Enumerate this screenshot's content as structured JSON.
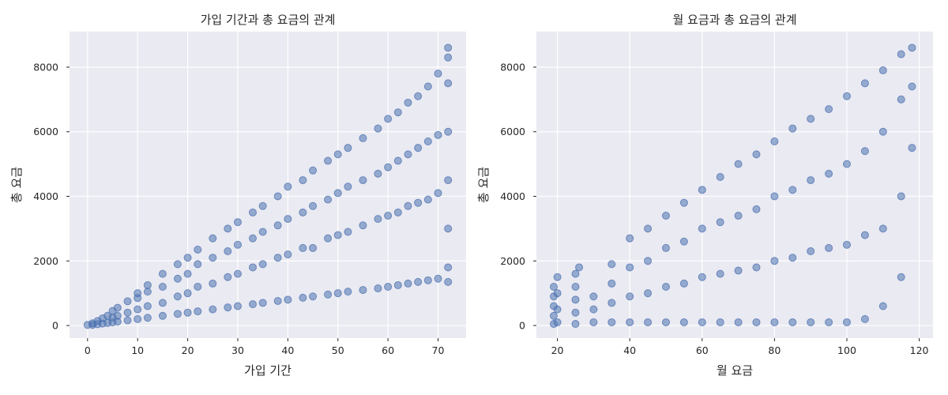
{
  "chart_data": [
    {
      "type": "scatter",
      "title": "가입 기간과 총 요금의 관계",
      "xlabel": "가입 기간",
      "ylabel": "총 요금",
      "xlim": [
        -3.6,
        75.6
      ],
      "ylim": [
        -390,
        9100
      ],
      "xticks": [
        0,
        10,
        20,
        30,
        40,
        50,
        60,
        70
      ],
      "yticks": [
        0,
        2000,
        4000,
        6000,
        8000
      ],
      "grid": true,
      "legend": "none",
      "point_color": "#4c72b0",
      "points": [
        [
          0,
          20
        ],
        [
          1,
          20
        ],
        [
          1,
          70
        ],
        [
          2,
          40
        ],
        [
          2,
          140
        ],
        [
          3,
          60
        ],
        [
          3,
          220
        ],
        [
          4,
          80
        ],
        [
          4,
          300
        ],
        [
          5,
          100
        ],
        [
          5,
          250
        ],
        [
          5,
          450
        ],
        [
          6,
          120
        ],
        [
          6,
          300
        ],
        [
          6,
          550
        ],
        [
          8,
          160
        ],
        [
          8,
          400
        ],
        [
          8,
          750
        ],
        [
          10,
          200
        ],
        [
          10,
          500
        ],
        [
          10,
          850
        ],
        [
          10,
          1000
        ],
        [
          12,
          240
        ],
        [
          12,
          600
        ],
        [
          12,
          1050
        ],
        [
          12,
          1250
        ],
        [
          15,
          300
        ],
        [
          15,
          700
        ],
        [
          15,
          1200
        ],
        [
          15,
          1600
        ],
        [
          18,
          360
        ],
        [
          18,
          900
        ],
        [
          18,
          1450
        ],
        [
          18,
          1900
        ],
        [
          20,
          400
        ],
        [
          20,
          1000
        ],
        [
          20,
          1600
        ],
        [
          20,
          2100
        ],
        [
          22,
          440
        ],
        [
          22,
          1200
        ],
        [
          22,
          1900
        ],
        [
          22,
          2350
        ],
        [
          25,
          500
        ],
        [
          25,
          1300
        ],
        [
          25,
          2100
        ],
        [
          25,
          2700
        ],
        [
          28,
          560
        ],
        [
          28,
          1500
        ],
        [
          28,
          2300
        ],
        [
          28,
          3000
        ],
        [
          30,
          600
        ],
        [
          30,
          1600
        ],
        [
          30,
          2500
        ],
        [
          30,
          3200
        ],
        [
          33,
          660
        ],
        [
          33,
          1800
        ],
        [
          33,
          2700
        ],
        [
          33,
          3500
        ],
        [
          35,
          700
        ],
        [
          35,
          1900
        ],
        [
          35,
          2900
        ],
        [
          35,
          3700
        ],
        [
          38,
          760
        ],
        [
          38,
          2100
        ],
        [
          38,
          3100
        ],
        [
          38,
          4000
        ],
        [
          40,
          800
        ],
        [
          40,
          2200
        ],
        [
          40,
          3300
        ],
        [
          40,
          4300
        ],
        [
          43,
          860
        ],
        [
          43,
          2400
        ],
        [
          43,
          3500
        ],
        [
          43,
          4500
        ],
        [
          45,
          900
        ],
        [
          45,
          2400
        ],
        [
          45,
          3700
        ],
        [
          45,
          4800
        ],
        [
          48,
          960
        ],
        [
          48,
          2700
        ],
        [
          48,
          3900
        ],
        [
          48,
          5100
        ],
        [
          50,
          1000
        ],
        [
          50,
          2800
        ],
        [
          50,
          4100
        ],
        [
          50,
          5300
        ],
        [
          52,
          1050
        ],
        [
          52,
          2900
        ],
        [
          52,
          4300
        ],
        [
          52,
          5500
        ],
        [
          55,
          1100
        ],
        [
          55,
          3100
        ],
        [
          55,
          4500
        ],
        [
          55,
          5800
        ],
        [
          58,
          1150
        ],
        [
          58,
          3300
        ],
        [
          58,
          4700
        ],
        [
          58,
          6100
        ],
        [
          60,
          1200
        ],
        [
          60,
          3400
        ],
        [
          60,
          4900
        ],
        [
          60,
          6400
        ],
        [
          62,
          1250
        ],
        [
          62,
          3500
        ],
        [
          62,
          5100
        ],
        [
          62,
          6600
        ],
        [
          64,
          1300
        ],
        [
          64,
          3700
        ],
        [
          64,
          5300
        ],
        [
          64,
          6900
        ],
        [
          66,
          1350
        ],
        [
          66,
          3800
        ],
        [
          66,
          5500
        ],
        [
          66,
          7100
        ],
        [
          68,
          1400
        ],
        [
          68,
          3900
        ],
        [
          68,
          5700
        ],
        [
          68,
          7400
        ],
        [
          70,
          1450
        ],
        [
          70,
          4100
        ],
        [
          70,
          5900
        ],
        [
          70,
          7800
        ],
        [
          72,
          1350
        ],
        [
          72,
          1800
        ],
        [
          72,
          3000
        ],
        [
          72,
          4500
        ],
        [
          72,
          6000
        ],
        [
          72,
          7500
        ],
        [
          72,
          8300
        ],
        [
          72,
          8600
        ]
      ]
    },
    {
      "type": "scatter",
      "title": "월 요금과 총 요금의 관계",
      "xlabel": "월 요금",
      "ylabel": "총 요금",
      "xlim": [
        14.2,
        123.8
      ],
      "ylim": [
        -390,
        9100
      ],
      "xticks": [
        20,
        40,
        60,
        80,
        100,
        120
      ],
      "yticks": [
        0,
        2000,
        4000,
        6000,
        8000
      ],
      "grid": true,
      "legend": "none",
      "point_color": "#4c72b0",
      "points": [
        [
          19,
          50
        ],
        [
          19,
          300
        ],
        [
          19,
          600
        ],
        [
          19,
          900
        ],
        [
          19,
          1200
        ],
        [
          20,
          100
        ],
        [
          20,
          500
        ],
        [
          20,
          1000
        ],
        [
          20,
          1500
        ],
        [
          25,
          50
        ],
        [
          25,
          400
        ],
        [
          25,
          800
        ],
        [
          25,
          1200
        ],
        [
          25,
          1600
        ],
        [
          26,
          1800
        ],
        [
          30,
          100
        ],
        [
          30,
          500
        ],
        [
          30,
          900
        ],
        [
          35,
          100
        ],
        [
          35,
          700
        ],
        [
          35,
          1300
        ],
        [
          35,
          1900
        ],
        [
          40,
          100
        ],
        [
          40,
          900
        ],
        [
          40,
          1800
        ],
        [
          40,
          2700
        ],
        [
          45,
          100
        ],
        [
          45,
          1000
        ],
        [
          45,
          2000
        ],
        [
          45,
          3000
        ],
        [
          50,
          100
        ],
        [
          50,
          1200
        ],
        [
          50,
          2400
        ],
        [
          50,
          3400
        ],
        [
          55,
          100
        ],
        [
          55,
          1300
        ],
        [
          55,
          2600
        ],
        [
          55,
          3800
        ],
        [
          60,
          100
        ],
        [
          60,
          1500
        ],
        [
          60,
          3000
        ],
        [
          60,
          4200
        ],
        [
          65,
          100
        ],
        [
          65,
          1600
        ],
        [
          65,
          3200
        ],
        [
          65,
          4600
        ],
        [
          70,
          100
        ],
        [
          70,
          1700
        ],
        [
          70,
          3400
        ],
        [
          70,
          5000
        ],
        [
          75,
          100
        ],
        [
          75,
          1800
        ],
        [
          75,
          3600
        ],
        [
          75,
          5300
        ],
        [
          80,
          100
        ],
        [
          80,
          2000
        ],
        [
          80,
          4000
        ],
        [
          80,
          5700
        ],
        [
          85,
          100
        ],
        [
          85,
          2100
        ],
        [
          85,
          4200
        ],
        [
          85,
          6100
        ],
        [
          90,
          100
        ],
        [
          90,
          2300
        ],
        [
          90,
          4500
        ],
        [
          90,
          6400
        ],
        [
          95,
          100
        ],
        [
          95,
          2400
        ],
        [
          95,
          4700
        ],
        [
          95,
          6700
        ],
        [
          100,
          100
        ],
        [
          100,
          2500
        ],
        [
          100,
          5000
        ],
        [
          100,
          7100
        ],
        [
          105,
          200
        ],
        [
          105,
          2800
        ],
        [
          105,
          5400
        ],
        [
          105,
          7500
        ],
        [
          110,
          600
        ],
        [
          110,
          3000
        ],
        [
          110,
          6000
        ],
        [
          110,
          7900
        ],
        [
          115,
          1500
        ],
        [
          115,
          4000
        ],
        [
          115,
          7000
        ],
        [
          115,
          8400
        ],
        [
          118,
          5500
        ],
        [
          118,
          7400
        ],
        [
          118,
          8600
        ]
      ]
    }
  ]
}
